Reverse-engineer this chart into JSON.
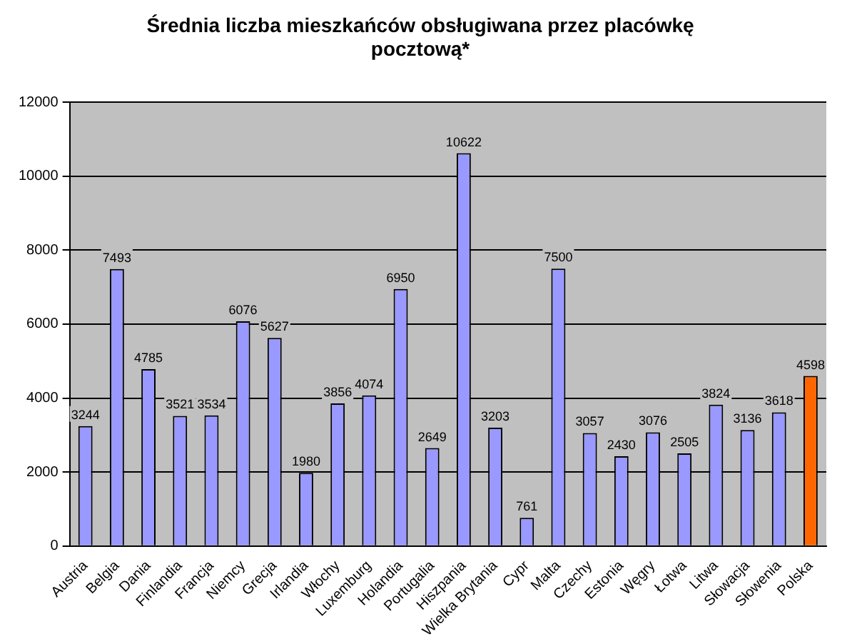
{
  "chart_data": {
    "type": "bar",
    "title": [
      "Średnia liczba mieszkańców obsługiwana przez placówkę",
      "pocztową*"
    ],
    "categories": [
      "Austria",
      "Belgia",
      "Dania",
      "Finlandia",
      "Francja",
      "Niemcy",
      "Grecja",
      "Irlandia",
      "Włochy",
      "Luxemburg",
      "Holandia",
      "Portugalia",
      "Hiszpania",
      "Wielka Brytania",
      "Cypr",
      "Malta",
      "Czechy",
      "Estonia",
      "Węgry",
      "Łotwa",
      "Litwa",
      "Słowacja",
      "Słowenia",
      "Polska"
    ],
    "values": [
      3244,
      7493,
      4785,
      3521,
      3534,
      6076,
      5627,
      1980,
      3856,
      4074,
      6950,
      2649,
      10622,
      3203,
      761,
      7500,
      3057,
      2430,
      3076,
      2505,
      3824,
      3136,
      3618,
      4598
    ],
    "colors": [
      "#9999ff",
      "#9999ff",
      "#9999ff",
      "#9999ff",
      "#9999ff",
      "#9999ff",
      "#9999ff",
      "#9999ff",
      "#9999ff",
      "#9999ff",
      "#9999ff",
      "#9999ff",
      "#9999ff",
      "#9999ff",
      "#9999ff",
      "#9999ff",
      "#9999ff",
      "#9999ff",
      "#9999ff",
      "#9999ff",
      "#9999ff",
      "#9999ff",
      "#9999ff",
      "#ff6600"
    ],
    "ylim": [
      0,
      12000
    ],
    "yticks": [
      0,
      2000,
      4000,
      6000,
      8000,
      10000,
      12000
    ],
    "grid": "y",
    "data_labels": true,
    "legend": false
  }
}
